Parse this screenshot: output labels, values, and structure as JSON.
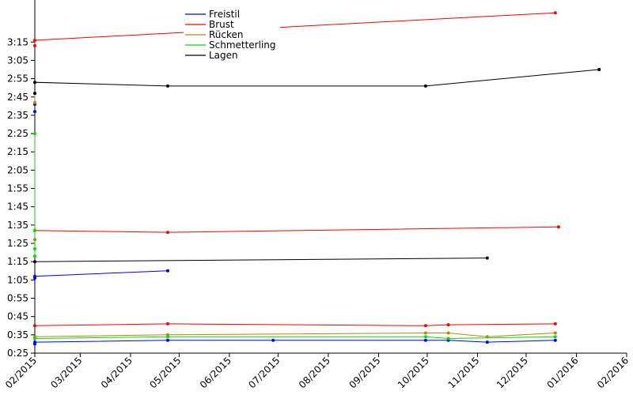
{
  "chart_data": {
    "type": "line",
    "title": "",
    "xlabel": "",
    "ylabel": "",
    "x_tick_labels": [
      "02/2015",
      "03/2015",
      "04/2015",
      "05/2015",
      "06/2015",
      "07/2015",
      "08/2015",
      "09/2015",
      "10/2015",
      "11/2015",
      "12/2015",
      "01/2016",
      "02/2016"
    ],
    "x_ticks": [
      "2015-02-01",
      "2015-03-01",
      "2015-04-01",
      "2015-05-01",
      "2015-06-01",
      "2015-07-01",
      "2015-08-01",
      "2015-09-01",
      "2015-10-01",
      "2015-11-01",
      "2015-12-01",
      "2016-01-01",
      "2016-02-01"
    ],
    "y_tick_labels": [
      "0:25",
      "0:35",
      "0:45",
      "0:55",
      "1:05",
      "1:15",
      "1:25",
      "1:35",
      "1:45",
      "1:55",
      "2:05",
      "2:15",
      "2:25",
      "2:35",
      "2:45",
      "2:55",
      "3:05",
      "3:15"
    ],
    "y_ticks_seconds": [
      25,
      35,
      45,
      55,
      65,
      75,
      85,
      95,
      105,
      115,
      125,
      135,
      145,
      155,
      165,
      175,
      185,
      195
    ],
    "xlim": [
      "2015-02-01",
      "2016-02-01"
    ],
    "ylim_seconds": [
      25,
      218
    ],
    "grid": false,
    "legend_position": "top-center",
    "series": [
      {
        "name": "Freistil",
        "color": "#0000ff",
        "segments": [
          {
            "x": [
              "2015-02-01",
              "2015-02-01",
              "2015-04-24",
              "2015-06-28",
              "2015-09-30",
              "2015-10-14",
              "2015-11-07",
              "2015-12-19"
            ],
            "y": [
              30,
              31,
              32,
              32,
              32,
              32,
              31,
              32
            ]
          },
          {
            "x": [
              "2015-02-01",
              "2015-02-01",
              "2015-04-24"
            ],
            "y": [
              66,
              67,
              70
            ]
          },
          {
            "x": [
              "2015-02-01",
              "2015-02-01"
            ],
            "y": [
              157,
              161
            ]
          }
        ]
      },
      {
        "name": "Brust",
        "color": "#ff0000",
        "segments": [
          {
            "x": [
              "2015-02-01",
              "2015-04-24",
              "2015-09-30",
              "2015-10-14",
              "2015-12-19"
            ],
            "y": [
              40,
              41,
              40,
              40.5,
              41
            ]
          },
          {
            "x": [
              "2015-02-01",
              "2015-04-24",
              "2015-12-21"
            ],
            "y": [
              92,
              91,
              94
            ]
          },
          {
            "x": [
              "2015-02-01",
              "2015-02-01",
              "2015-12-19"
            ],
            "y": [
              193,
              196,
              211
            ]
          }
        ]
      },
      {
        "name": "Rücken",
        "color": "#b8860b",
        "segments": [
          {
            "x": [
              "2015-02-01",
              "2015-04-24",
              "2015-09-30",
              "2015-10-14",
              "2015-11-07",
              "2015-12-19"
            ],
            "y": [
              34,
              35,
              36,
              36,
              34,
              36
            ]
          },
          {
            "x": [
              "2015-02-01",
              "2015-02-01"
            ],
            "y": [
              87,
              92
            ]
          },
          {
            "x": [
              "2015-02-01",
              "2015-02-01"
            ],
            "y": [
              162,
              167
            ]
          }
        ]
      },
      {
        "name": "Schmetterling",
        "color": "#00dd00",
        "segments": [
          {
            "x": [
              "2015-02-01",
              "2015-04-24",
              "2015-09-30",
              "2015-10-14",
              "2015-12-19"
            ],
            "y": [
              33,
              34,
              34,
              33,
              34
            ]
          },
          {
            "x": [
              "2015-02-01",
              "2015-02-01",
              "2015-02-01",
              "2015-02-01"
            ],
            "y": [
              78,
              82,
              92,
              145
            ]
          }
        ]
      },
      {
        "name": "Lagen",
        "color": "#000000",
        "segments": [
          {
            "x": [
              "2015-02-01",
              "2015-11-07"
            ],
            "y": [
              75,
              77
            ]
          },
          {
            "x": [
              "2015-02-01",
              "2015-02-01",
              "2015-04-24",
              "2015-09-30",
              "2016-01-15"
            ],
            "y": [
              167,
              173,
              171,
              171,
              180
            ]
          }
        ]
      }
    ]
  }
}
